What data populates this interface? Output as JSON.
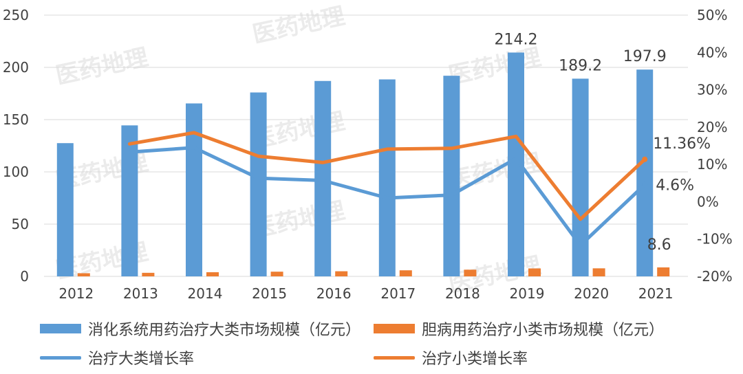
{
  "colors": {
    "blue": "#5b9bd5",
    "orange": "#ed7d31",
    "grid": "#d9d9d9",
    "text": "#404040"
  },
  "watermark_text": "医药地理",
  "chart_data": {
    "type": "bar",
    "categories": [
      "2012",
      "2013",
      "2014",
      "2015",
      "2016",
      "2017",
      "2018",
      "2019",
      "2020",
      "2021"
    ],
    "y_left": {
      "min": 0,
      "max": 250,
      "step": 50,
      "ticks": [
        "0",
        "50",
        "100",
        "150",
        "200",
        "250"
      ]
    },
    "y_right": {
      "min": -20,
      "max": 50,
      "step": 10,
      "ticks": [
        "-20%",
        "-10%",
        "0%",
        "10%",
        "20%",
        "30%",
        "40%",
        "50%"
      ]
    },
    "series": [
      {
        "name": "消化系统用药治疗大类市场规模（亿元）",
        "kind": "bar",
        "axis": "left",
        "color": "#5b9bd5",
        "values": [
          127.5,
          144.5,
          165.5,
          176.0,
          187.0,
          188.5,
          192.0,
          214.2,
          189.2,
          197.9
        ]
      },
      {
        "name": "胆病用药治疗小类市场规模（亿元）",
        "kind": "bar",
        "axis": "left",
        "color": "#ed7d31",
        "values": [
          3.0,
          3.4,
          4.0,
          4.5,
          4.9,
          5.8,
          6.4,
          7.6,
          7.7,
          8.6
        ]
      },
      {
        "name": "治疗大类增长率",
        "kind": "line",
        "axis": "right",
        "color": "#5b9bd5",
        "values": [
          null,
          13.3,
          14.5,
          6.3,
          5.7,
          1.0,
          1.8,
          11.6,
          -11.7,
          4.6
        ]
      },
      {
        "name": "治疗小类增长率",
        "kind": "line",
        "axis": "right",
        "color": "#ed7d31",
        "values": [
          null,
          15.5,
          18.5,
          12.2,
          10.5,
          14.1,
          14.3,
          17.5,
          -4.7,
          11.36
        ]
      }
    ],
    "data_labels": [
      {
        "series": 0,
        "index": 7,
        "text": "214.2"
      },
      {
        "series": 0,
        "index": 8,
        "text": "189.2"
      },
      {
        "series": 0,
        "index": 9,
        "text": "197.9"
      },
      {
        "series": 1,
        "index": 9,
        "text": "8.6"
      },
      {
        "series": 2,
        "index": 9,
        "text": "4.6%"
      },
      {
        "series": 3,
        "index": 9,
        "text": "11.36%"
      }
    ],
    "grid": true,
    "legend_position": "bottom"
  }
}
